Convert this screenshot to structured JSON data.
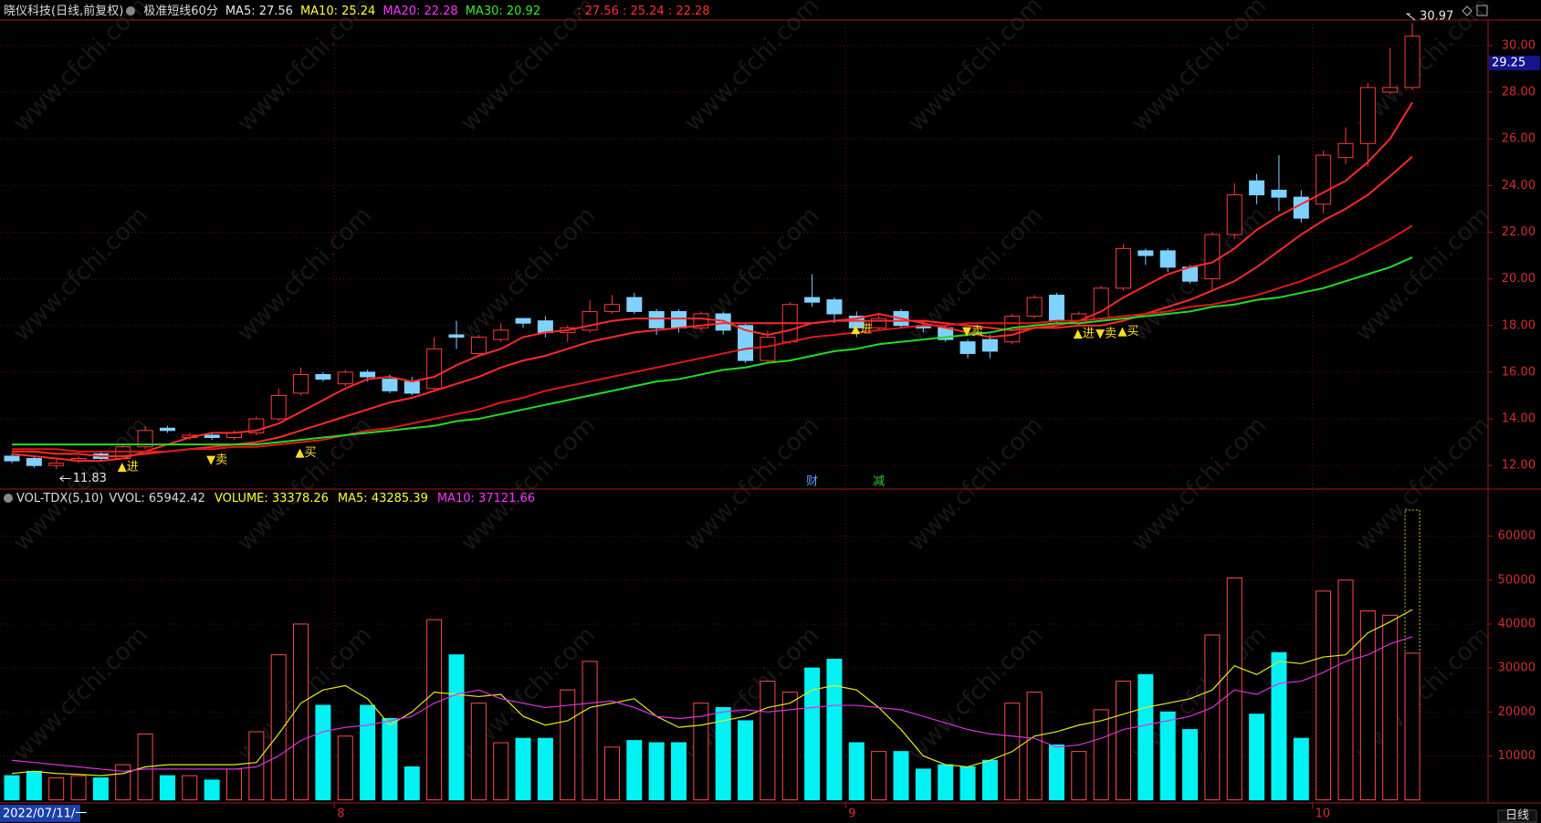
{
  "chart_data": [
    {
      "type": "candlestick",
      "title": "晓仪科技(日线,前复权)",
      "indicator": "极准短线60分",
      "categories": [
        "2022/07/11/一",
        null,
        null,
        null,
        null,
        null,
        null,
        null,
        null,
        null,
        null,
        null,
        null,
        null,
        null,
        "8",
        null,
        null,
        null,
        null,
        null,
        null,
        null,
        null,
        null,
        null,
        null,
        null,
        null,
        null,
        null,
        null,
        null,
        null,
        null,
        null,
        null,
        null,
        "9",
        null,
        null,
        null,
        null,
        null,
        null,
        null,
        null,
        null,
        null,
        null,
        null,
        null,
        null,
        null,
        null,
        null,
        null,
        null,
        null,
        "10",
        null,
        null,
        null,
        null
      ],
      "open": [
        12.4,
        12.3,
        12.0,
        12.2,
        12.5,
        12.3,
        12.8,
        13.6,
        13.2,
        13.3,
        13.2,
        13.4,
        14.0,
        15.1,
        15.9,
        15.5,
        16.0,
        15.7,
        15.6,
        15.3,
        17.6,
        16.8,
        17.4,
        18.3,
        18.2,
        17.7,
        17.8,
        18.6,
        19.2,
        18.6,
        18.6,
        17.9,
        18.5,
        18.0,
        16.5,
        17.3,
        19.2,
        19.1,
        18.4,
        17.9,
        18.6,
        18.0,
        17.9,
        17.3,
        17.4,
        17.3,
        18.4,
        19.3,
        18.1,
        18.3,
        19.6,
        21.2,
        21.2,
        20.5,
        20.0,
        21.9,
        24.2,
        23.8,
        23.5,
        23.2,
        25.2,
        25.8,
        28.0,
        28.2
      ],
      "high": [
        12.5,
        12.4,
        12.3,
        12.4,
        12.6,
        12.9,
        13.7,
        13.7,
        13.4,
        13.4,
        13.5,
        14.1,
        15.3,
        16.2,
        16.0,
        16.1,
        16.1,
        15.9,
        15.8,
        17.5,
        18.2,
        17.6,
        18.1,
        18.3,
        18.4,
        18.0,
        19.1,
        19.3,
        19.4,
        18.7,
        18.7,
        18.6,
        18.6,
        18.1,
        17.8,
        19.0,
        20.2,
        19.2,
        18.6,
        18.5,
        18.7,
        18.2,
        18.0,
        17.4,
        17.6,
        18.5,
        19.3,
        19.4,
        18.6,
        19.7,
        21.5,
        21.3,
        21.3,
        20.6,
        22.0,
        24.1,
        24.5,
        25.3,
        23.8,
        25.5,
        26.5,
        28.4,
        29.9,
        30.97
      ],
      "low": [
        12.1,
        11.9,
        11.83,
        12.1,
        12.2,
        12.3,
        12.7,
        13.4,
        13.1,
        13.1,
        13.1,
        13.3,
        13.9,
        15.0,
        15.6,
        15.4,
        15.6,
        15.1,
        15.0,
        15.2,
        17.0,
        16.7,
        17.3,
        17.9,
        17.5,
        17.3,
        17.7,
        18.5,
        18.5,
        17.6,
        17.7,
        17.8,
        17.6,
        16.4,
        16.4,
        17.2,
        18.8,
        18.1,
        17.5,
        17.8,
        17.9,
        17.7,
        17.3,
        16.6,
        16.6,
        17.2,
        18.3,
        18.1,
        18.0,
        18.2,
        19.5,
        20.6,
        20.3,
        19.8,
        19.5,
        21.7,
        23.2,
        22.9,
        22.4,
        22.8,
        24.9,
        24.8,
        27.9,
        28.1
      ],
      "close": [
        12.2,
        12.0,
        12.1,
        12.3,
        12.3,
        12.8,
        13.5,
        13.5,
        13.3,
        13.2,
        13.4,
        14.0,
        15.0,
        15.9,
        15.7,
        16.0,
        15.8,
        15.2,
        15.1,
        17.0,
        17.5,
        17.5,
        17.8,
        18.1,
        17.7,
        17.9,
        18.6,
        18.9,
        18.6,
        17.9,
        17.9,
        18.5,
        17.8,
        16.5,
        17.5,
        18.9,
        19.0,
        18.5,
        17.9,
        18.3,
        18.0,
        17.9,
        17.4,
        16.8,
        16.9,
        18.4,
        19.2,
        18.2,
        18.5,
        19.6,
        21.3,
        21.0,
        20.5,
        19.9,
        21.9,
        23.6,
        23.6,
        23.5,
        22.6,
        25.3,
        25.8,
        28.2,
        28.2,
        30.4
      ],
      "up_color": "#ff3b3b",
      "down_color": "#7fd2ff",
      "series": [
        {
          "name": "MA5",
          "legend": "MA5: 27.56",
          "label_color": "#e8e8e8",
          "color": "#ff2a2a",
          "values": [
            12.5,
            12.4,
            12.3,
            12.2,
            12.2,
            12.3,
            12.6,
            12.9,
            13.2,
            13.4,
            13.4,
            13.5,
            13.8,
            14.3,
            14.8,
            15.3,
            15.7,
            15.8,
            15.6,
            15.8,
            16.3,
            16.7,
            17.0,
            17.5,
            17.7,
            17.8,
            18.0,
            18.2,
            18.3,
            18.3,
            18.3,
            18.3,
            18.2,
            17.8,
            17.6,
            17.8,
            18.1,
            18.2,
            18.3,
            18.5,
            18.3,
            18.1,
            17.9,
            17.7,
            17.5,
            17.6,
            17.9,
            18.0,
            18.2,
            18.6,
            19.2,
            19.7,
            20.2,
            20.5,
            20.7,
            21.3,
            22.1,
            22.7,
            23.2,
            23.7,
            24.2,
            25.0,
            26.0,
            27.56
          ]
        },
        {
          "name": "MA10",
          "legend": "MA10: 25.24",
          "label_color": "#ffff33",
          "color": "#ff2a2a",
          "values": [
            12.6,
            12.6,
            12.5,
            12.5,
            12.4,
            12.4,
            12.5,
            12.6,
            12.7,
            12.8,
            12.9,
            13.0,
            13.2,
            13.5,
            13.8,
            14.1,
            14.4,
            14.7,
            14.9,
            15.2,
            15.5,
            15.8,
            16.2,
            16.5,
            16.7,
            17.0,
            17.3,
            17.5,
            17.7,
            17.8,
            17.9,
            18.0,
            18.1,
            18.1,
            18.1,
            18.1,
            18.1,
            18.2,
            18.2,
            18.2,
            18.2,
            18.2,
            18.1,
            18.0,
            17.9,
            17.8,
            17.9,
            17.9,
            18.0,
            18.0,
            18.2,
            18.5,
            18.8,
            19.1,
            19.5,
            19.9,
            20.5,
            21.2,
            21.9,
            22.5,
            23.0,
            23.6,
            24.4,
            25.24
          ]
        },
        {
          "name": "MA20",
          "legend": "MA20: 22.28",
          "label_color": "#ff33ff",
          "color": "#e01818",
          "values": [
            12.7,
            12.7,
            12.7,
            12.6,
            12.6,
            12.6,
            12.6,
            12.6,
            12.7,
            12.7,
            12.8,
            12.8,
            12.9,
            13.0,
            13.1,
            13.3,
            13.5,
            13.6,
            13.8,
            14.0,
            14.2,
            14.4,
            14.7,
            14.9,
            15.2,
            15.4,
            15.6,
            15.8,
            16.0,
            16.2,
            16.4,
            16.6,
            16.8,
            17.0,
            17.1,
            17.3,
            17.5,
            17.6,
            17.7,
            17.8,
            17.9,
            18.0,
            18.0,
            18.1,
            18.1,
            18.1,
            18.1,
            18.2,
            18.2,
            18.3,
            18.4,
            18.5,
            18.6,
            18.8,
            18.9,
            19.1,
            19.3,
            19.6,
            19.9,
            20.3,
            20.7,
            21.2,
            21.7,
            22.28
          ]
        },
        {
          "name": "MA30",
          "legend": "MA30: 20.92",
          "label_color": "#33ee33",
          "color": "#22dd22",
          "values": [
            12.9,
            12.9,
            12.9,
            12.9,
            12.9,
            12.9,
            12.9,
            12.9,
            12.9,
            12.9,
            12.9,
            12.9,
            13.0,
            13.1,
            13.2,
            13.3,
            13.4,
            13.5,
            13.6,
            13.7,
            13.9,
            14.0,
            14.2,
            14.4,
            14.6,
            14.8,
            15.0,
            15.2,
            15.4,
            15.6,
            15.7,
            15.9,
            16.1,
            16.2,
            16.4,
            16.5,
            16.7,
            16.9,
            17.0,
            17.2,
            17.3,
            17.4,
            17.5,
            17.6,
            17.7,
            17.9,
            18.0,
            18.1,
            18.1,
            18.2,
            18.3,
            18.4,
            18.5,
            18.6,
            18.8,
            18.9,
            19.1,
            19.2,
            19.4,
            19.6,
            19.9,
            20.2,
            20.5,
            20.92
          ]
        }
      ],
      "extra_legend": ": 27.56 : 25.24 : 22.28",
      "extra_legend_color": "#ff3030",
      "ylim": [
        11.03,
        31.09
      ],
      "yticks": [
        {
          "value": 12,
          "label": "12.00"
        },
        {
          "value": 14,
          "label": "14.00"
        },
        {
          "value": 16,
          "label": "16.00"
        },
        {
          "value": 18,
          "label": "18.00"
        },
        {
          "value": 20,
          "label": "20.00"
        },
        {
          "value": 22,
          "label": "22.00"
        },
        {
          "value": 24,
          "label": "24.00"
        },
        {
          "value": 26,
          "label": "26.00"
        },
        {
          "value": 28,
          "label": "28.00"
        },
        {
          "value": 30,
          "label": "30.00"
        }
      ],
      "grid": true,
      "cursor": 29.25,
      "signal_color": "#ffdd22",
      "signals": [
        {
          "label": "▲进",
          "at": 5,
          "value": 12.4
        },
        {
          "label": "▼卖",
          "at": 9,
          "value": 12.7
        },
        {
          "label": "▲买",
          "at": 13,
          "value": 13.0
        },
        {
          "label": "▲进",
          "at": 38,
          "value": 18.3
        },
        {
          "label": "▼卖",
          "at": 43,
          "value": 18.2
        },
        {
          "label": "▲进",
          "at": 48,
          "value": 18.1
        },
        {
          "label": "▼卖",
          "at": 49,
          "value": 18.1
        },
        {
          "label": "▲买",
          "at": 50,
          "value": 18.2
        }
      ],
      "events": [
        {
          "label": "财",
          "at": 36,
          "color": "#5aa0ff"
        },
        {
          "label": "减",
          "at": 39,
          "color": "#33cc33"
        }
      ],
      "period": "日线",
      "watermark": "www.cfchi.com"
    },
    {
      "type": "bar",
      "title": "VOL-TDX(5,10)",
      "vvol_legend": "VVOL: 65942.42",
      "vvol": 65942.42,
      "vvol_color": "#d4c020",
      "volume_legend": "VOLUME: 33378.26",
      "volume_legend_color": "#ffff33",
      "values": [
        5500,
        6500,
        5000,
        5500,
        5000,
        8000,
        15000,
        5500,
        5500,
        4500,
        7000,
        15500,
        33000,
        40000,
        21500,
        14500,
        21500,
        18500,
        7500,
        41000,
        33000,
        22000,
        13000,
        14000,
        14000,
        25000,
        31500,
        12000,
        13500,
        13000,
        13000,
        22000,
        21000,
        18000,
        27000,
        24500,
        30000,
        32000,
        13000,
        11000,
        11000,
        7000,
        8000,
        7500,
        9000,
        22000,
        24500,
        12500,
        11000,
        20500,
        27000,
        28500,
        20000,
        16000,
        37500,
        50500,
        19500,
        33500,
        14000,
        47500,
        50000,
        43000,
        42000,
        33378.26
      ],
      "up_color": "#ff4a4a",
      "down_color": "#00f2f2",
      "series": [
        {
          "name": "MA5",
          "legend": "MA5: 43285.39",
          "label_color": "#ffff33",
          "color": "#e8e820",
          "values": [
            6000,
            6500,
            6000,
            5800,
            5500,
            6000,
            7500,
            8000,
            8000,
            8000,
            8000,
            8500,
            15000,
            22000,
            25000,
            26000,
            23000,
            17000,
            20000,
            24500,
            24000,
            23500,
            24000,
            19000,
            17000,
            18000,
            21000,
            22000,
            23000,
            19000,
            16500,
            17000,
            18000,
            19000,
            21000,
            22000,
            25000,
            26000,
            25000,
            21000,
            16000,
            10000,
            8000,
            7500,
            9000,
            11000,
            14500,
            15500,
            17000,
            18000,
            19500,
            21000,
            22000,
            23000,
            25000,
            30500,
            28500,
            31500,
            31000,
            32500,
            33000,
            38000,
            40500,
            43285.39
          ]
        },
        {
          "name": "MA10",
          "legend": "MA10: 37121.66",
          "label_color": "#ff33ff",
          "color": "#e030e0",
          "values": [
            9000,
            8500,
            8000,
            7500,
            7000,
            6500,
            7000,
            7000,
            7000,
            7000,
            7000,
            7500,
            10000,
            13500,
            15500,
            16500,
            17000,
            18000,
            19000,
            22000,
            24000,
            25000,
            23000,
            22000,
            21000,
            21500,
            22000,
            22500,
            21000,
            19000,
            18500,
            19000,
            20000,
            20500,
            20000,
            20500,
            21000,
            21500,
            21500,
            21000,
            20500,
            19000,
            17500,
            16000,
            15000,
            14500,
            14000,
            12000,
            12500,
            14000,
            16000,
            17000,
            18000,
            19000,
            21000,
            25000,
            24000,
            26500,
            27000,
            29000,
            31500,
            33000,
            35500,
            37121.66
          ]
        }
      ],
      "ylim": [
        -700,
        70300
      ],
      "yticks": [
        10000,
        20000,
        30000,
        40000,
        50000,
        60000
      ],
      "grid": true
    }
  ]
}
